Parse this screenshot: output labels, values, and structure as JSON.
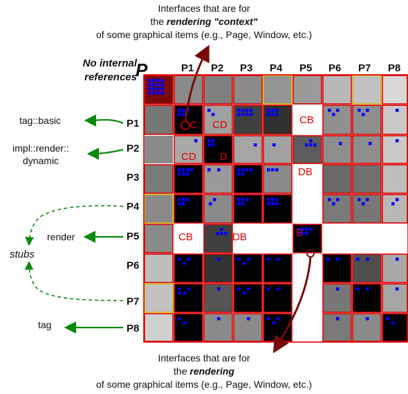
{
  "top_caption": {
    "line1": "Interfaces that are for",
    "line2_prefix": "the ",
    "line2_emph": "rendering \"context\"",
    "line3": "of some graphical items (e.g., Page, Window, etc.)"
  },
  "bottom_caption": {
    "line1": "Interfaces that are for",
    "line2_prefix": "the ",
    "line2_emph": "rendering",
    "line3": "of some graphical items (e.g., Page, Window, etc.)"
  },
  "corner": {
    "note_line1": "No internal",
    "note_line2": "references",
    "label": "P"
  },
  "packages": [
    "P1",
    "P2",
    "P3",
    "P4",
    "P5",
    "P6",
    "P7",
    "P8"
  ],
  "side_labels": {
    "p1": "tag::basic",
    "p2_line1": "impl::render::",
    "p2_line2": "dynamic",
    "p5": "render",
    "stubs": "stubs",
    "p8": "tag"
  },
  "cell_marks": {
    "r1c1": "C",
    "r1c2": "CD",
    "r1c5": "CB",
    "r2c1": "CD",
    "r2c2": "D",
    "r3c5": "DB",
    "r5c1": "CB",
    "r5c3": "DB",
    "r5c5": "B"
  },
  "colors": {
    "border_red": "#e00000",
    "border_yellow": "#d8b400",
    "dot_blue": "#0000ff",
    "arrow_green": "#0a8a0a",
    "arrow_maroon": "#7a0a0a",
    "corner_fill": "#7a0a0a"
  }
}
